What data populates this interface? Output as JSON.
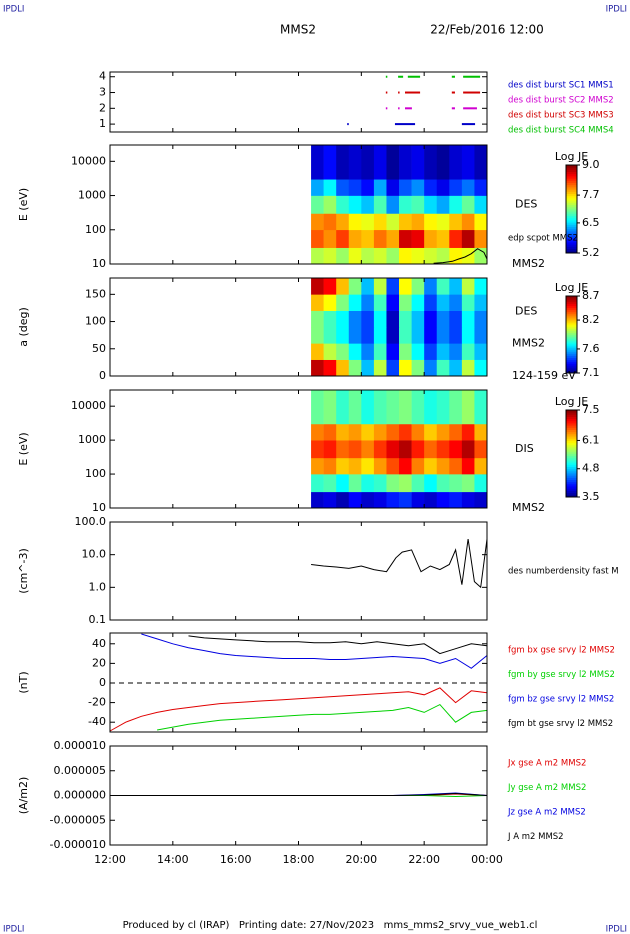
{
  "header": {
    "corner_label": "IPDLI",
    "title": "MMS2",
    "date": "22/Feb/2016 12:00"
  },
  "footer": "Produced by cl (IRAP)   Printing date: 27/Nov/2023   mms_mms2_srvy_vue_web1.cl",
  "chart_data": [
    {
      "type": "timeline",
      "ylim": [
        0.5,
        4.3
      ],
      "yticks": [
        1,
        2,
        3,
        4
      ],
      "series": [
        {
          "name": "des dist burst SC1 MMS1",
          "color": "#0000c8",
          "level": 1,
          "intervals": [
            [
              19.55,
              19.6
            ],
            [
              21.07,
              21.71
            ],
            [
              23.2,
              23.62
            ]
          ]
        },
        {
          "name": "des dist burst SC2 MMS2",
          "color": "#d000d0",
          "level": 2,
          "intervals": [
            [
              20.78,
              20.82
            ],
            [
              21.17,
              21.21
            ],
            [
              21.39,
              21.61
            ],
            [
              22.88,
              22.98
            ],
            [
              23.24,
              23.68
            ]
          ]
        },
        {
          "name": "des dist burst SC3 MMS3",
          "color": "#d00000",
          "level": 3,
          "intervals": [
            [
              20.78,
              20.82
            ],
            [
              21.17,
              21.21
            ],
            [
              21.39,
              21.87
            ],
            [
              22.88,
              22.98
            ],
            [
              23.24,
              23.78
            ]
          ]
        },
        {
          "name": "des dist burst SC4 MMS4",
          "color": "#00c000",
          "level": 4,
          "intervals": [
            [
              20.78,
              20.82
            ],
            [
              21.17,
              21.33
            ],
            [
              21.48,
              21.87
            ],
            [
              22.88,
              22.98
            ],
            [
              23.24,
              23.78
            ]
          ]
        }
      ]
    },
    {
      "type": "heatmap",
      "ylabel": "E (eV)",
      "log": true,
      "ylim": [
        10,
        30000
      ],
      "yticks": [
        10,
        100,
        1000,
        10000
      ],
      "x_edges": [
        18.4,
        18.8,
        19.2,
        19.6,
        20.0,
        20.4,
        20.8,
        21.2,
        21.6,
        22.0,
        22.4,
        22.8,
        23.2,
        23.6,
        24.0
      ],
      "y_edges": [
        10,
        30,
        100,
        300,
        1000,
        3000,
        30000
      ],
      "z": [
        [
          7.3,
          7.4,
          7.2,
          7.5,
          7.3,
          7.4,
          7.2,
          7.6,
          7.5,
          7.4,
          7.3,
          7.6,
          7.5,
          7.2
        ],
        [
          8.2,
          8.0,
          8.3,
          7.9,
          7.8,
          8.1,
          7.9,
          8.7,
          8.6,
          7.9,
          7.8,
          8.4,
          8.8,
          8.0
        ],
        [
          8.0,
          8.1,
          7.9,
          7.6,
          7.5,
          7.7,
          7.4,
          7.8,
          7.9,
          7.6,
          7.5,
          7.8,
          8.0,
          7.6
        ],
        [
          7.0,
          7.2,
          6.8,
          6.6,
          6.4,
          6.9,
          6.2,
          6.8,
          6.9,
          6.5,
          6.3,
          6.7,
          7.0,
          6.5
        ],
        [
          6.3,
          6.6,
          6.0,
          5.9,
          5.7,
          6.3,
          5.6,
          6.0,
          6.2,
          5.8,
          5.6,
          5.9,
          6.1,
          5.8
        ],
        [
          5.5,
          5.7,
          5.4,
          5.5,
          5.4,
          5.6,
          5.3,
          5.5,
          5.6,
          5.4,
          5.3,
          5.5,
          5.6,
          5.4
        ]
      ],
      "colorbar": {
        "label": "Log JE",
        "lim": [
          5.2,
          9.0
        ],
        "ticks": [
          5.2,
          6.5,
          7.7,
          {
            "value": 9.0,
            "label": "9.0"
          }
        ]
      },
      "annotations": [
        "DES",
        "MMS2"
      ],
      "series": [
        {
          "name": "edp scpot MMS2",
          "color": "#000000",
          "x": [
            22.3,
            22.6,
            22.9,
            23.1,
            23.3,
            23.5,
            23.7,
            23.9,
            24.0
          ],
          "values": [
            10.5,
            11,
            12,
            14,
            16,
            20,
            28,
            22,
            14
          ]
        }
      ]
    },
    {
      "type": "heatmap",
      "ylabel": "a (deg)",
      "ylim": [
        0,
        180
      ],
      "yticks": [
        0,
        50,
        100,
        150
      ],
      "x_edges": [
        18.4,
        18.8,
        19.2,
        19.6,
        20.0,
        20.4,
        20.8,
        21.2,
        21.6,
        22.0,
        22.4,
        22.8,
        23.2,
        23.6,
        24.0
      ],
      "y_edges": [
        0,
        30,
        60,
        90,
        120,
        150,
        180
      ],
      "z": [
        [
          8.6,
          8.5,
          8.2,
          7.9,
          7.6,
          8.0,
          7.4,
          8.1,
          7.9,
          7.5,
          7.8,
          7.6,
          8.0,
          7.7
        ],
        [
          8.2,
          8.0,
          7.9,
          7.7,
          7.5,
          7.8,
          7.3,
          7.9,
          7.7,
          7.4,
          7.6,
          7.5,
          7.8,
          7.6
        ],
        [
          7.9,
          7.8,
          7.7,
          7.5,
          7.4,
          7.7,
          7.2,
          7.8,
          7.6,
          7.3,
          7.5,
          7.4,
          7.7,
          7.5
        ],
        [
          7.9,
          7.8,
          7.7,
          7.5,
          7.4,
          7.7,
          7.2,
          7.8,
          7.6,
          7.3,
          7.5,
          7.4,
          7.7,
          7.5
        ],
        [
          8.2,
          8.1,
          7.9,
          7.7,
          7.5,
          7.8,
          7.3,
          7.9,
          7.7,
          7.4,
          7.6,
          7.5,
          7.8,
          7.6
        ],
        [
          8.6,
          8.5,
          8.2,
          7.9,
          7.6,
          8.0,
          7.4,
          8.1,
          7.9,
          7.5,
          7.8,
          7.6,
          8.0,
          7.7
        ]
      ],
      "colorbar": {
        "label": "Log JE",
        "lim": [
          7.1,
          8.7
        ],
        "ticks": [
          7.1,
          7.6,
          8.2,
          8.7
        ]
      },
      "annotations": [
        "DES",
        "MMS2",
        "124-159 eV"
      ]
    },
    {
      "type": "heatmap",
      "ylabel": "E (eV)",
      "log": true,
      "ylim": [
        10,
        30000
      ],
      "yticks": [
        10,
        100,
        1000,
        10000
      ],
      "x_edges": [
        18.4,
        18.8,
        19.2,
        19.6,
        20.0,
        20.4,
        20.8,
        21.2,
        21.6,
        22.0,
        22.4,
        22.8,
        23.2,
        23.6,
        24.0
      ],
      "y_edges": [
        10,
        30,
        100,
        300,
        1000,
        3000,
        30000
      ],
      "z": [
        [
          3.8,
          3.9,
          3.7,
          4.0,
          3.8,
          3.9,
          4.1,
          4.2,
          3.9,
          3.8,
          4.0,
          4.1,
          3.9,
          3.8
        ],
        [
          5.2,
          5.3,
          5.0,
          5.4,
          5.1,
          5.2,
          5.5,
          5.6,
          5.3,
          5.0,
          5.3,
          5.4,
          5.5,
          5.1
        ],
        [
          6.4,
          6.5,
          6.2,
          6.3,
          6.1,
          6.4,
          6.7,
          7.0,
          6.5,
          6.2,
          6.4,
          6.6,
          7.0,
          6.3
        ],
        [
          6.8,
          6.9,
          6.6,
          6.7,
          6.5,
          6.8,
          7.1,
          7.3,
          6.9,
          6.6,
          6.8,
          7.0,
          7.3,
          6.7
        ],
        [
          6.5,
          6.6,
          6.3,
          6.4,
          6.2,
          6.4,
          6.6,
          6.8,
          6.5,
          6.2,
          6.4,
          6.6,
          6.9,
          6.3
        ],
        [
          5.4,
          5.5,
          5.2,
          5.4,
          5.1,
          5.3,
          5.4,
          5.5,
          5.3,
          5.1,
          5.2,
          5.4,
          5.6,
          5.2
        ]
      ],
      "colorbar": {
        "label": "Log JE",
        "lim": [
          3.5,
          7.5
        ],
        "ticks": [
          3.5,
          4.8,
          6.1,
          7.5
        ]
      },
      "annotations": [
        "DIS",
        "MMS2"
      ]
    },
    {
      "type": "line",
      "ylabel": "(cm^-3)",
      "log": true,
      "ylim": [
        0.1,
        100
      ],
      "yticks": [
        {
          "value": 100,
          "label": "100.0"
        },
        {
          "value": 10,
          "label": "10.0"
        },
        {
          "value": 1,
          "label": "1.0"
        },
        0.1
      ],
      "x": [
        18.4,
        18.8,
        19.2,
        19.6,
        20.0,
        20.4,
        20.8,
        21.1,
        21.3,
        21.6,
        21.9,
        22.2,
        22.5,
        22.8,
        23.0,
        23.2,
        23.4,
        23.6,
        23.8,
        24.0
      ],
      "series": [
        {
          "name": "des numberdensity fast M",
          "color": "#000000",
          "values": [
            5.0,
            4.5,
            4.2,
            3.8,
            4.5,
            3.5,
            3.0,
            8,
            12,
            14,
            3,
            4.5,
            3.5,
            5,
            14,
            1.2,
            30,
            1.5,
            1.0,
            30
          ]
        }
      ]
    },
    {
      "type": "line",
      "ylabel": "(nT)",
      "ylim": [
        -50,
        51
      ],
      "yticks": [
        40,
        20,
        0,
        -20,
        -40
      ],
      "hline": 0,
      "x": [
        12,
        12.5,
        13,
        13.5,
        14,
        14.5,
        15,
        15.5,
        16,
        16.5,
        17,
        17.5,
        18,
        18.5,
        19,
        19.5,
        20,
        20.5,
        21,
        21.5,
        22,
        22.5,
        23,
        23.5,
        24
      ],
      "series": [
        {
          "name": "fgm bx gse srvy l2 MMS2",
          "color": "#e00000",
          "values": [
            -49,
            -40,
            -34,
            -30,
            -27,
            -25,
            -23,
            -21,
            -20,
            -19,
            -18,
            -17,
            -16,
            -15,
            -14,
            -13,
            -12,
            -11,
            -10,
            -9,
            -12,
            -5,
            -20,
            -8,
            -10
          ]
        },
        {
          "name": "fgm by gse srvy l2 MMS2",
          "color": "#00d000",
          "values": [
            null,
            null,
            null,
            -48,
            -45,
            -42,
            -40,
            -38,
            -37,
            -36,
            -35,
            -34,
            -33,
            -32,
            -32,
            -31,
            -30,
            -29,
            -28,
            -25,
            -30,
            -22,
            -40,
            -30,
            -28
          ]
        },
        {
          "name": "fgm bz gse srvy l2 MMS2",
          "color": "#0000e0",
          "values": [
            null,
            null,
            50,
            45,
            40,
            36,
            33,
            30,
            28,
            27,
            26,
            25,
            25,
            25,
            24,
            24,
            25,
            26,
            27,
            26,
            25,
            20,
            25,
            15,
            28
          ]
        },
        {
          "name": "fgm bt gse srvy l2 MMS2",
          "color": "#000000",
          "values": [
            null,
            null,
            null,
            null,
            null,
            48,
            46,
            45,
            44,
            43,
            42,
            42,
            42,
            41,
            41,
            42,
            40,
            42,
            40,
            38,
            40,
            30,
            35,
            40,
            38
          ]
        }
      ]
    },
    {
      "type": "line",
      "ylabel": "(A/m2)",
      "ylim": [
        -1e-05,
        1e-05
      ],
      "yticks": [
        {
          "value": 1e-05,
          "label": "0.000010"
        },
        {
          "value": 5e-06,
          "label": "0.000005"
        },
        {
          "value": 0,
          "label": "0.000000"
        },
        {
          "value": -5e-06,
          "label": "-0.000005"
        },
        {
          "value": -1e-05,
          "label": "-0.000010"
        }
      ],
      "xlim": [
        12,
        24
      ],
      "xticks": [
        {
          "value": 12,
          "label": "12:00"
        },
        {
          "value": 14,
          "label": "14:00"
        },
        {
          "value": 16,
          "label": "16:00"
        },
        {
          "value": 18,
          "label": "18:00"
        },
        {
          "value": 20,
          "label": "20:00"
        },
        {
          "value": 22,
          "label": "22:00"
        },
        {
          "value": 24,
          "label": "00:00"
        }
      ],
      "x": [
        12,
        13,
        14,
        15,
        16,
        17,
        18,
        19,
        20,
        21,
        22,
        23,
        24
      ],
      "series": [
        {
          "name": "Jx gse A m2 MMS2",
          "color": "#e00000",
          "values": [
            0,
            0,
            0,
            0,
            0,
            0,
            0,
            0,
            0,
            0,
            0,
            3e-07,
            0
          ]
        },
        {
          "name": "Jy gse A m2 MMS2",
          "color": "#00d000",
          "values": [
            0,
            0,
            0,
            0,
            0,
            0,
            0,
            0,
            0,
            0,
            0,
            -2e-07,
            0
          ]
        },
        {
          "name": "Jz gse A m2 MMS2",
          "color": "#0000e0",
          "values": [
            0,
            0,
            0,
            0,
            0,
            0,
            0,
            0,
            0,
            0,
            2e-07,
            5e-07,
            0
          ]
        },
        {
          "name": "J A m2 MMS2",
          "color": "#000000",
          "values": [
            0,
            0,
            0,
            0,
            0,
            0,
            0,
            0,
            0,
            0,
            1e-07,
            4e-07,
            0
          ]
        }
      ]
    }
  ]
}
